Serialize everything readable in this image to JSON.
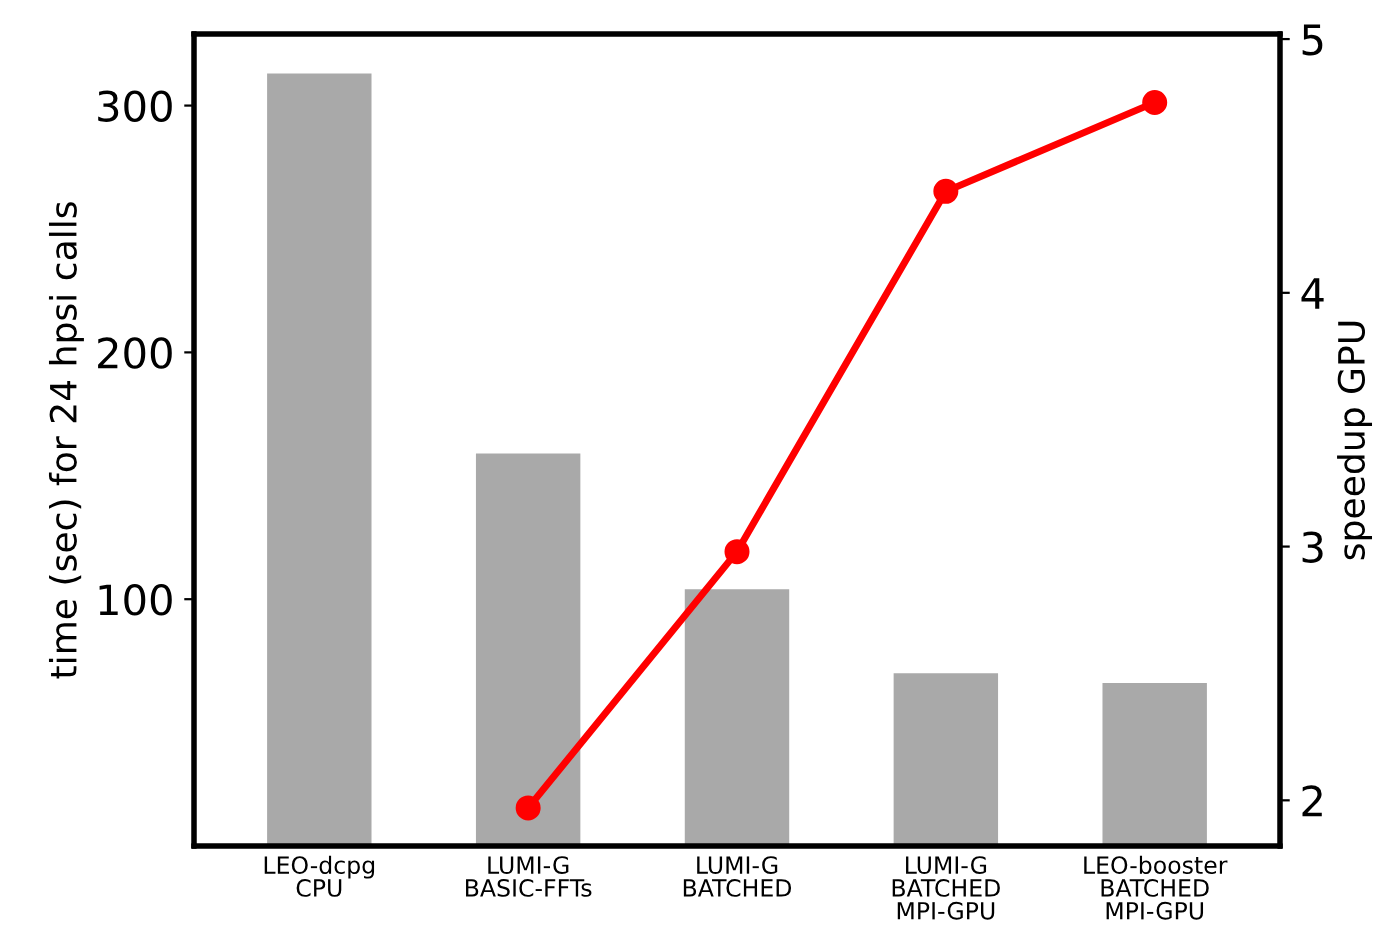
{
  "chart_data": {
    "type": "bar",
    "ylabel": "time (sec) for 24 hpsi calls",
    "y2label": "speedup GPU",
    "categories": [
      "LEO-dcpg\nCPU",
      "LUMI-G\nBASIC-FFTs",
      "LUMI-G\nBATCHED",
      "LUMI-G\nBATCHED\nMPI-GPU",
      "LEO-booster\nBATCHED\nMPI-GPU"
    ],
    "series": [
      {
        "color": "#a9a9a9",
        "values": [
          313,
          159,
          104,
          70,
          66
        ]
      },
      {
        "type": "line",
        "axis": "y2",
        "color": "#ff0000",
        "marker": "circle",
        "values": [
          null,
          1.97,
          2.98,
          4.4,
          4.75
        ]
      }
    ],
    "ylim": [
      0,
      329
    ],
    "yticks": [
      100,
      200,
      300
    ],
    "y2lim": [
      1.82,
      5.02
    ],
    "y2ticks": [
      2,
      3,
      4,
      5
    ],
    "grid": false,
    "legend": false
  }
}
